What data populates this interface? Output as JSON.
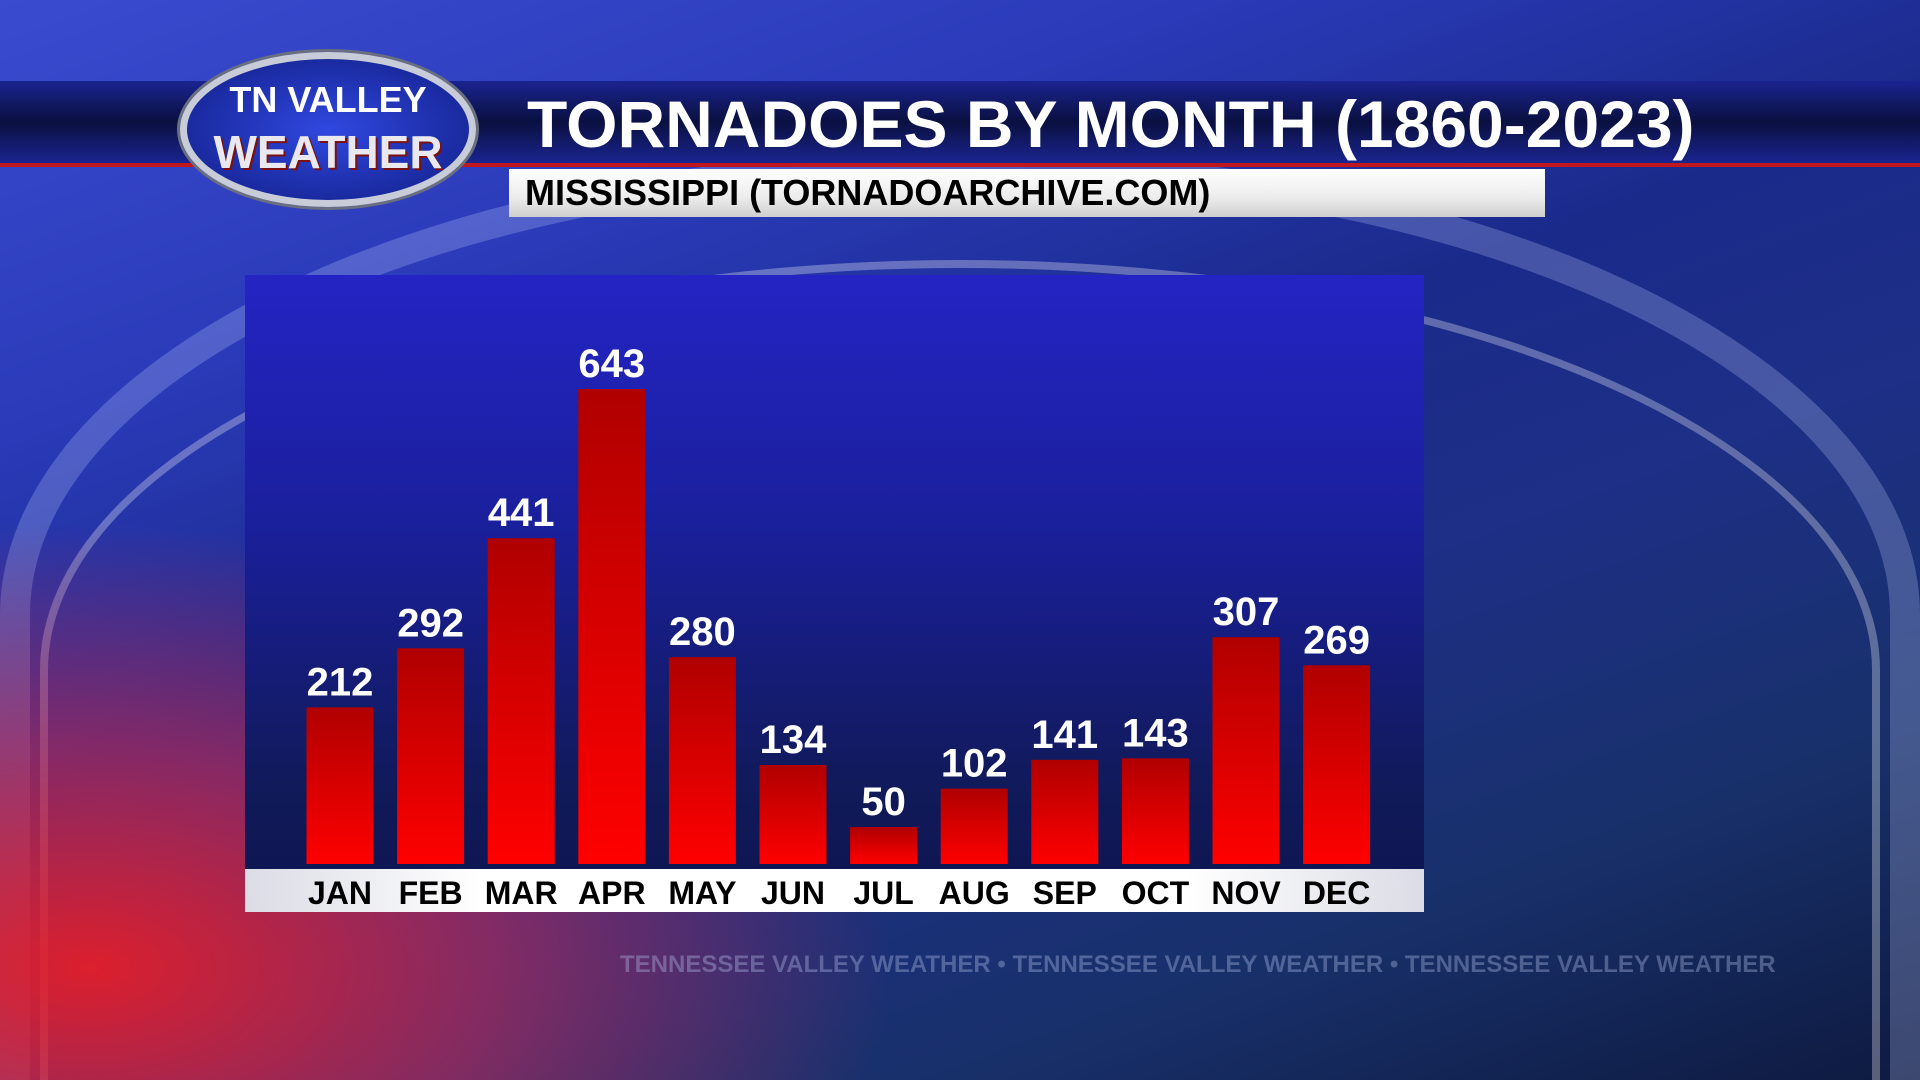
{
  "logo": {
    "line1": "TN VALLEY",
    "line2": "WEATHER"
  },
  "watermark": "TENNESSEE VALLEY WEATHER • TENNESSEE VALLEY WEATHER • TENNESSEE VALLEY WEATHER",
  "colors": {
    "bar": "#e80000",
    "bar_top": "#b00000",
    "panel": "#1a1f9a",
    "title_band": "#0a1040",
    "accent_red": "#c0161e"
  },
  "chart_data": {
    "type": "bar",
    "title": "TORNADOES BY MONTH (1860-2023)",
    "subtitle": "MISSISSIPPI (TORNADOARCHIVE.COM)",
    "categories": [
      "JAN",
      "FEB",
      "MAR",
      "APR",
      "MAY",
      "JUN",
      "JUL",
      "AUG",
      "SEP",
      "OCT",
      "NOV",
      "DEC"
    ],
    "values": [
      212,
      292,
      441,
      643,
      280,
      134,
      50,
      102,
      141,
      143,
      307,
      269
    ],
    "xlabel": "",
    "ylabel": "",
    "ylim": [
      0,
      643
    ],
    "grid": false,
    "data_labels": true
  }
}
